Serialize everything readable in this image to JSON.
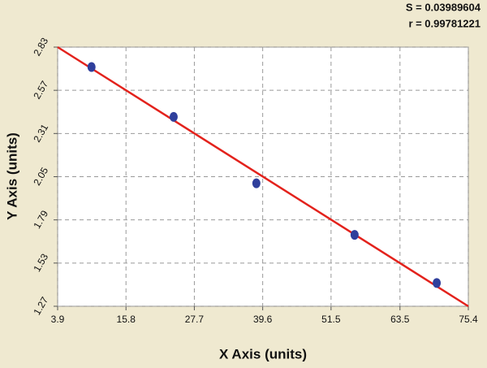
{
  "chart_data": {
    "type": "scatter",
    "x_label": "X Axis (units)",
    "y_label": "Y Axis (units)",
    "annotations": [
      "S = 0.03989604",
      "r = 0.99781221"
    ],
    "xlim": [
      3.9,
      75.4
    ],
    "ylim": [
      1.27,
      2.83
    ],
    "xticks": [
      3.9,
      15.8,
      27.7,
      39.6,
      51.5,
      63.5,
      75.4
    ],
    "yticks": [
      1.27,
      1.53,
      1.79,
      2.05,
      2.31,
      2.57,
      2.83
    ],
    "grid": true,
    "series": [
      {
        "type": "scatter",
        "color": "#2f3f9c",
        "x": [
          9.8,
          24.1,
          38.5,
          55.6,
          69.9
        ],
        "values": [
          2.71,
          2.41,
          2.01,
          1.7,
          1.41
        ]
      },
      {
        "type": "line",
        "color": "#e3221c",
        "x": [
          3.9,
          75.4
        ],
        "values": [
          2.83,
          1.27
        ]
      }
    ]
  }
}
